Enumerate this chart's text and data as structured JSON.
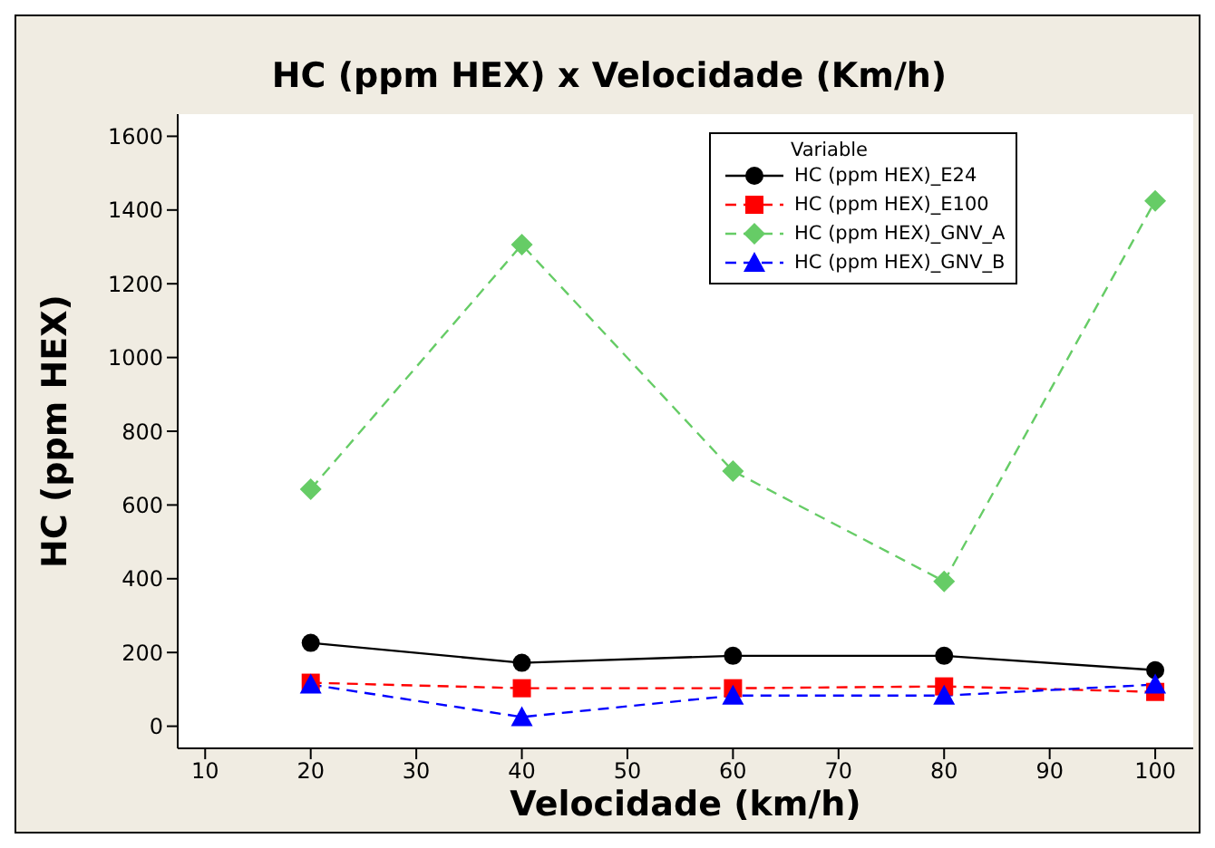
{
  "chart_data": {
    "type": "line",
    "title": "HC (ppm HEX) x Velocidade (Km/h)",
    "xlabel": "Velocidade (km/h)",
    "ylabel": "HC (ppm HEX)",
    "legend_title": "Variable",
    "legend": "top right",
    "grid": false,
    "x": [
      20,
      40,
      60,
      80,
      100
    ],
    "xlim": [
      7.4,
      103.6
    ],
    "xticks": [
      10,
      20,
      30,
      40,
      50,
      60,
      70,
      80,
      90,
      100
    ],
    "ylim": [
      -60,
      1660
    ],
    "yticks": [
      0,
      200,
      400,
      600,
      800,
      1000,
      1200,
      1400,
      1600
    ],
    "series": [
      {
        "name": "HC (ppm HEX)_E24",
        "color": "#000000",
        "marker": "circle",
        "line_style": "solid",
        "values": [
          226,
          172,
          191,
          191,
          152
        ]
      },
      {
        "name": "HC (ppm HEX)_E100",
        "color": "#ff0000",
        "marker": "square",
        "line_style": "dashed",
        "values": [
          118,
          103,
          103,
          108,
          93
        ]
      },
      {
        "name": "HC (ppm HEX)_GNV_A",
        "color": "#66cc66",
        "marker": "diamond",
        "line_style": "dashed",
        "values": [
          643,
          1306,
          692,
          393,
          1425
        ]
      },
      {
        "name": "HC (ppm HEX)_GNV_B",
        "color": "#0000ff",
        "marker": "triangle",
        "line_style": "dashed",
        "values": [
          113,
          25,
          83,
          83,
          113
        ]
      }
    ]
  }
}
